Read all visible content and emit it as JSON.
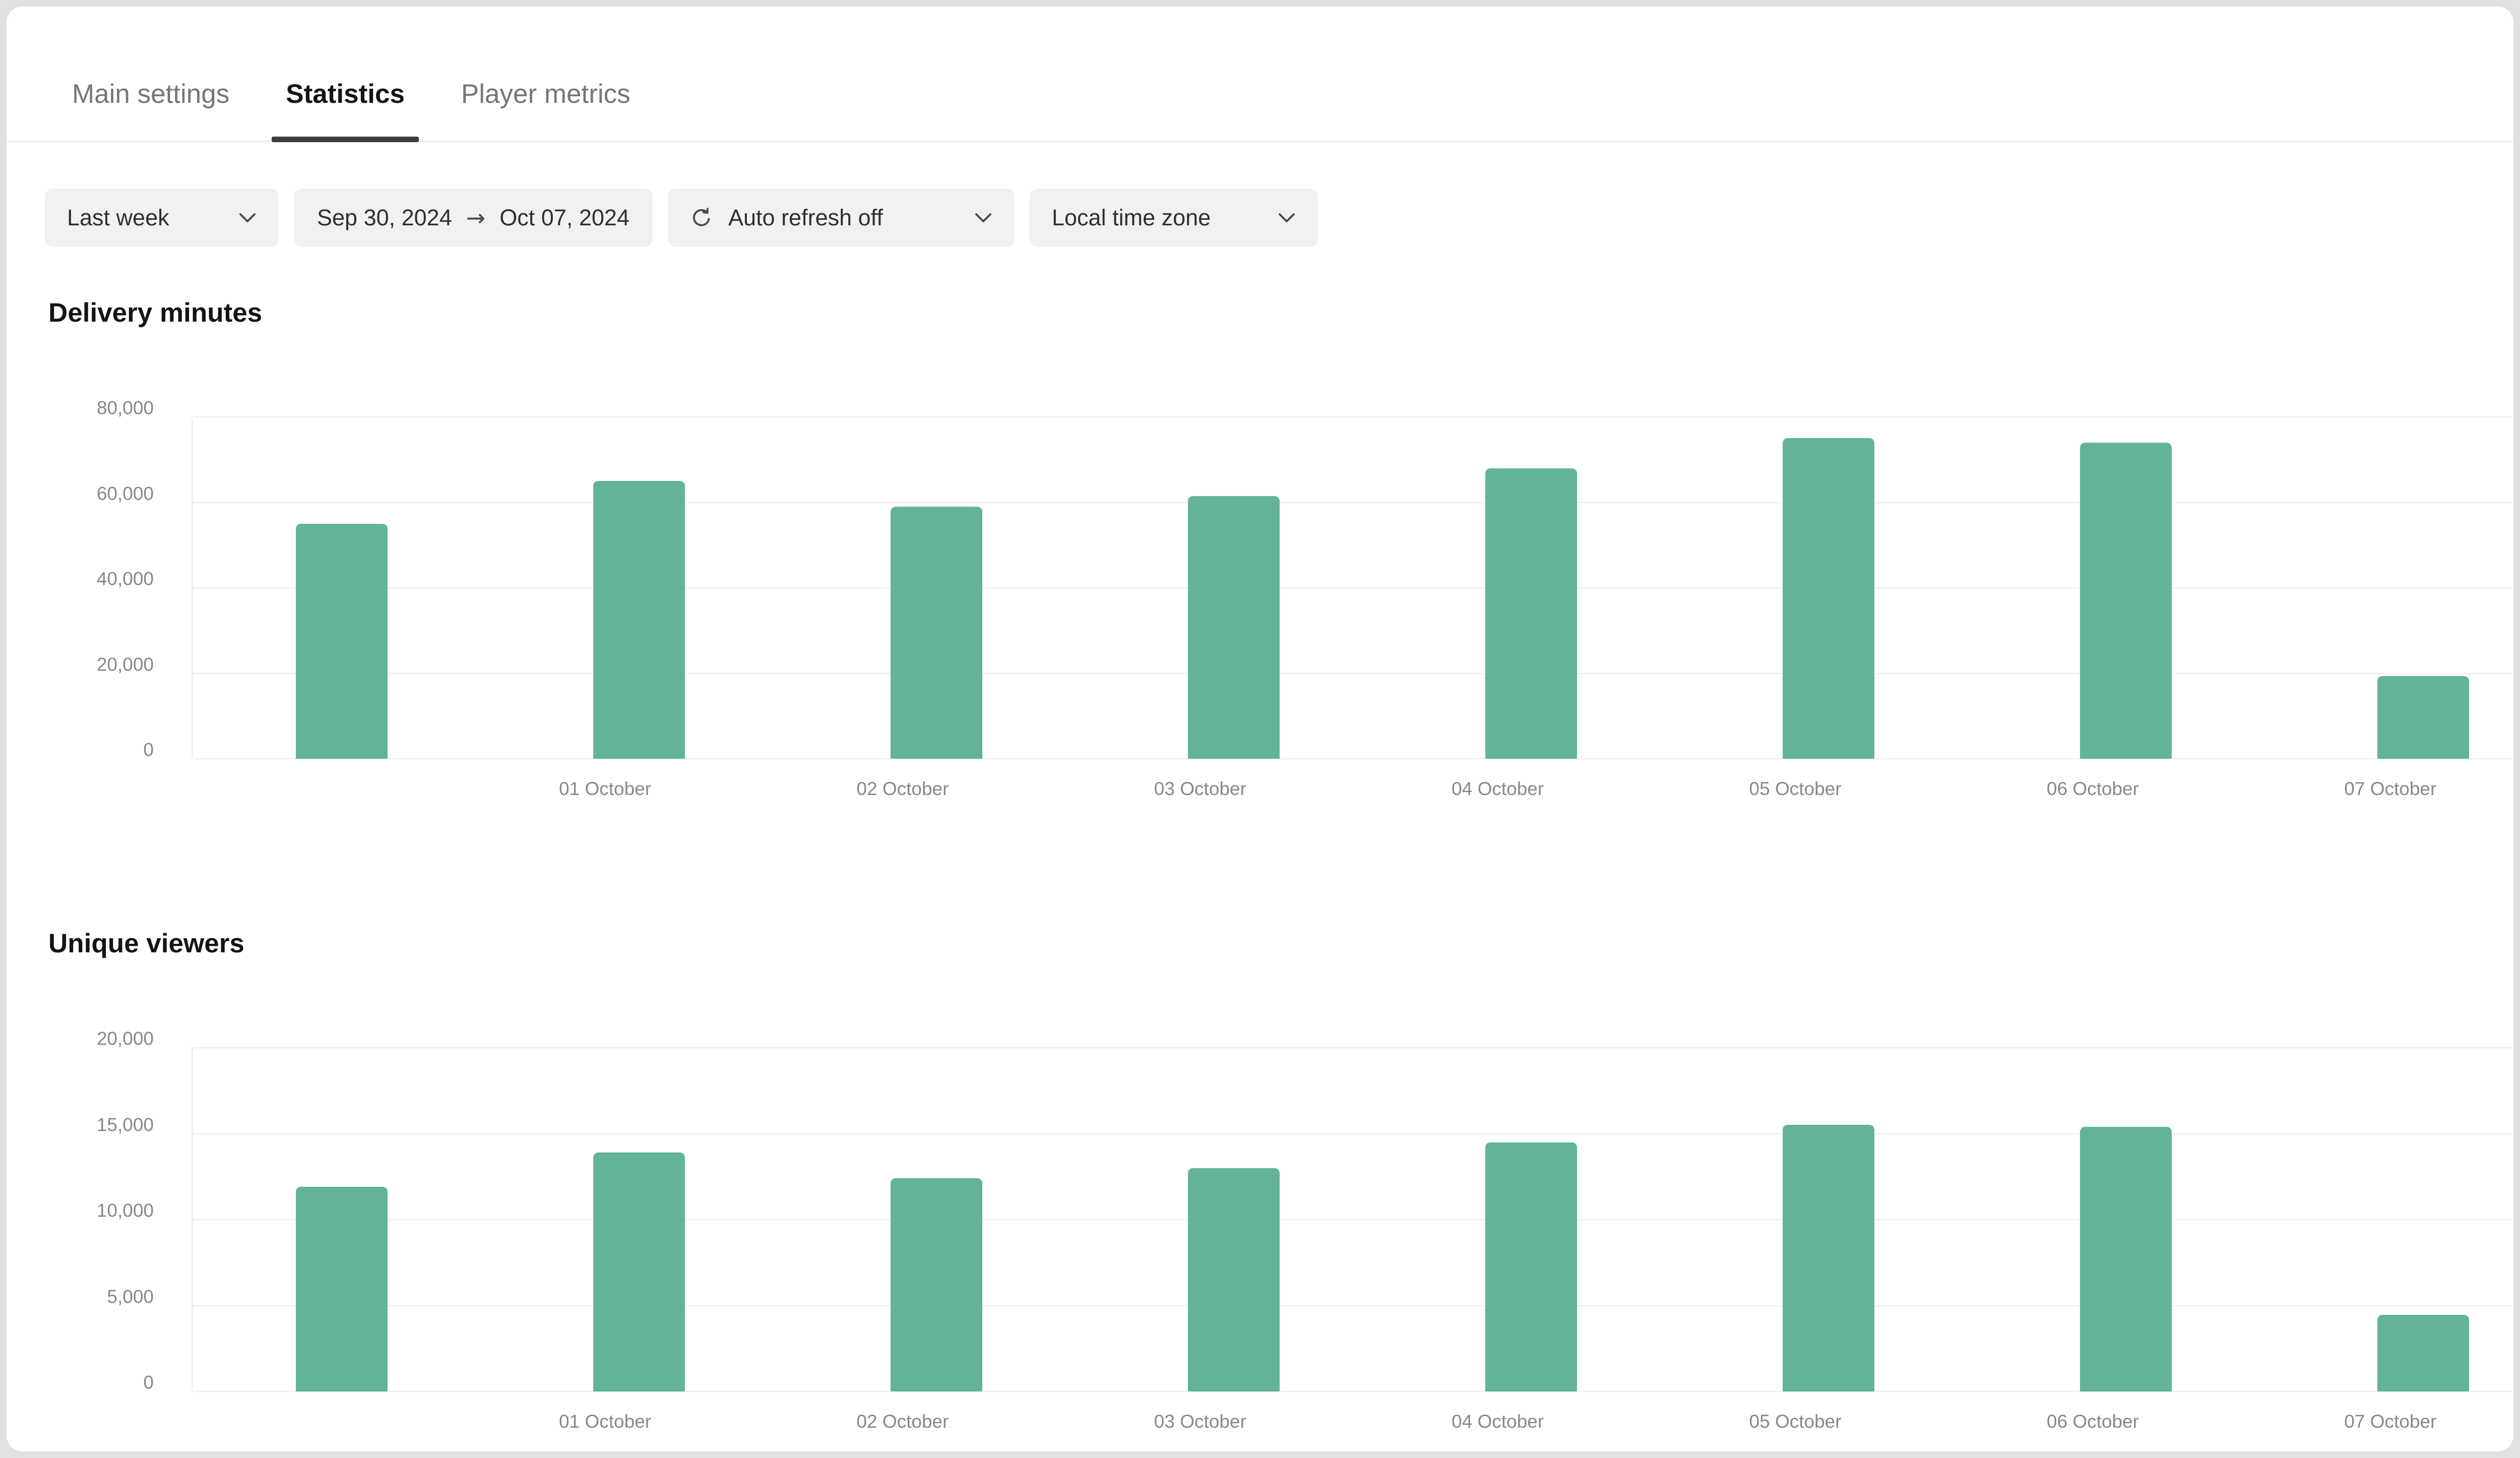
{
  "tabs": {
    "items": [
      {
        "label": "Main settings",
        "active": false
      },
      {
        "label": "Statistics",
        "active": true
      },
      {
        "label": "Player metrics",
        "active": false
      }
    ]
  },
  "filters": {
    "period": {
      "label": "Last week"
    },
    "date_range": {
      "from": "Sep 30, 2024",
      "arrow": "→",
      "to": "Oct 07, 2024"
    },
    "auto_refresh": {
      "label": "Auto refresh off"
    },
    "timezone": {
      "label": "Local time zone"
    }
  },
  "colors": {
    "bar": "#63b39a",
    "page_background": "#e3e0e0",
    "card_background": "#ffffff",
    "grid": "#f1f1f1",
    "axis_text": "#85888c",
    "active_tab_underline": "#3d3d3d",
    "filter_button_background": "#f1f1f1"
  },
  "chart_data": [
    {
      "type": "bar",
      "title": "Delivery minutes",
      "categories": [
        "",
        "01 October",
        "02 October",
        "03 October",
        "04 October",
        "05 October",
        "06 October",
        "07 October"
      ],
      "values": [
        55000,
        65000,
        59000,
        61500,
        68000,
        75000,
        74000,
        19300
      ],
      "ylim": [
        0,
        80000
      ],
      "yticks": [
        0,
        20000,
        40000,
        60000,
        80000
      ],
      "ytick_labels": [
        "0",
        "20,000",
        "40,000",
        "60,000",
        "80,000"
      ],
      "xlabel": "",
      "ylabel": "",
      "grid": "horizontal",
      "legend": "none",
      "bar_color": "#63b39a"
    },
    {
      "type": "bar",
      "title": "Unique viewers",
      "categories": [
        "",
        "01 October",
        "02 October",
        "03 October",
        "04 October",
        "05 October",
        "06 October",
        "07 October"
      ],
      "values": [
        11900,
        13900,
        12400,
        13000,
        14500,
        15500,
        15400,
        4450
      ],
      "ylim": [
        0,
        20000
      ],
      "yticks": [
        0,
        5000,
        10000,
        15000,
        20000
      ],
      "ytick_labels": [
        "0",
        "5,000",
        "10,000",
        "15,000",
        "20,000"
      ],
      "xlabel": "",
      "ylabel": "",
      "grid": "horizontal",
      "legend": "none",
      "bar_color": "#63b39a"
    }
  ]
}
